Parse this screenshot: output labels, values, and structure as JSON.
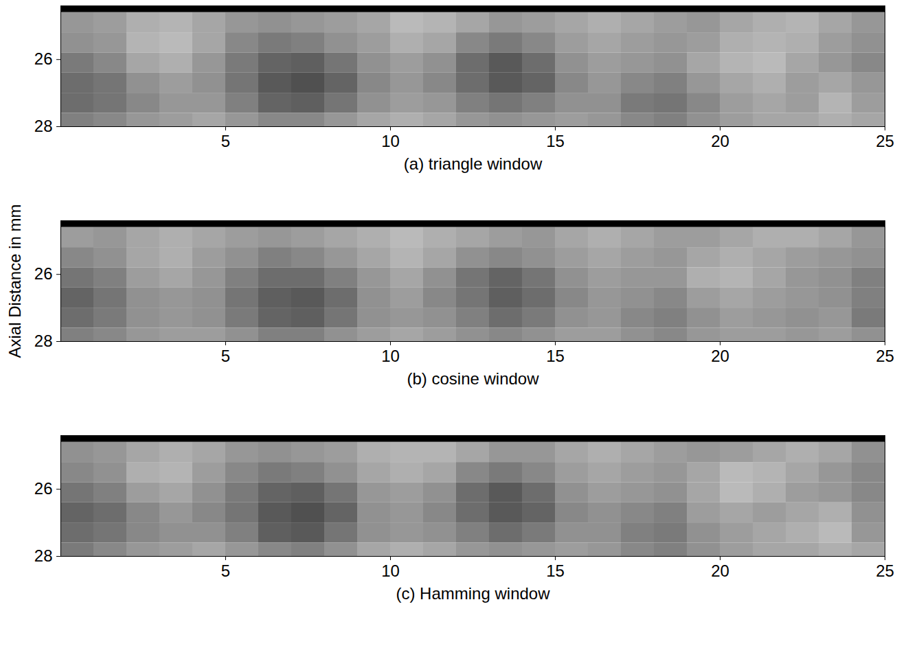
{
  "chart_data": [
    {
      "type": "heatmap",
      "xlabel": "(a) triangle window",
      "color": "gray",
      "xlim": [
        0,
        25
      ],
      "ylim": [
        24.4,
        28
      ],
      "xticks": [
        5,
        10,
        15,
        20,
        25
      ],
      "yticks": [
        26,
        28
      ],
      "clim": [
        0,
        100
      ],
      "x_edges": [
        0,
        1,
        2,
        3,
        4,
        5,
        6,
        7,
        8,
        9,
        10,
        11,
        12,
        13,
        14,
        15,
        16,
        17,
        18,
        19,
        20,
        21,
        22,
        23,
        24,
        25
      ],
      "y_edges": [
        24.4,
        24.6,
        25.2,
        25.8,
        26.4,
        27.0,
        27.6,
        28.0
      ],
      "cells": [
        [
          0,
          0,
          0,
          0,
          0,
          0,
          0,
          0,
          0,
          0,
          0,
          0,
          0,
          0,
          0,
          0,
          0,
          0,
          0,
          0,
          0,
          0,
          0,
          0,
          0
        ],
        [
          50,
          52,
          58,
          60,
          55,
          50,
          48,
          50,
          52,
          55,
          62,
          60,
          55,
          50,
          52,
          55,
          58,
          55,
          52,
          50,
          55,
          58,
          60,
          55,
          50
        ],
        [
          48,
          50,
          60,
          62,
          55,
          45,
          40,
          42,
          48,
          52,
          58,
          55,
          45,
          40,
          45,
          52,
          55,
          52,
          50,
          52,
          58,
          60,
          58,
          52,
          48
        ],
        [
          40,
          45,
          55,
          58,
          50,
          40,
          32,
          30,
          38,
          48,
          52,
          48,
          35,
          28,
          35,
          48,
          52,
          50,
          48,
          55,
          60,
          62,
          55,
          50,
          45
        ],
        [
          35,
          38,
          48,
          52,
          48,
          38,
          28,
          25,
          32,
          45,
          50,
          45,
          35,
          28,
          32,
          45,
          50,
          45,
          42,
          50,
          55,
          58,
          52,
          55,
          50
        ],
        [
          35,
          38,
          45,
          50,
          50,
          42,
          32,
          30,
          38,
          48,
          52,
          50,
          42,
          38,
          42,
          48,
          48,
          40,
          38,
          45,
          52,
          55,
          52,
          60,
          52
        ],
        [
          42,
          45,
          50,
          52,
          55,
          50,
          45,
          45,
          50,
          55,
          58,
          55,
          50,
          48,
          50,
          52,
          50,
          45,
          42,
          48,
          52,
          55,
          55,
          58,
          55
        ]
      ]
    },
    {
      "type": "heatmap",
      "xlabel": "(b) cosine window",
      "ylabel": "Axial Distance in mm",
      "color": "gray",
      "xlim": [
        0,
        25
      ],
      "ylim": [
        24.4,
        28
      ],
      "xticks": [
        5,
        10,
        15,
        20,
        25
      ],
      "yticks": [
        26,
        28
      ],
      "clim": [
        0,
        100
      ],
      "x_edges": [
        0,
        1,
        2,
        3,
        4,
        5,
        6,
        7,
        8,
        9,
        10,
        11,
        12,
        13,
        14,
        15,
        16,
        17,
        18,
        19,
        20,
        21,
        22,
        23,
        24,
        25
      ],
      "y_edges": [
        24.4,
        24.6,
        25.2,
        25.8,
        26.4,
        27.0,
        27.6,
        28.0
      ],
      "cells": [
        [
          0,
          0,
          0,
          0,
          0,
          0,
          0,
          0,
          0,
          0,
          0,
          0,
          0,
          0,
          0,
          0,
          0,
          0,
          0,
          0,
          0,
          0,
          0,
          0,
          0
        ],
        [
          52,
          50,
          55,
          58,
          55,
          52,
          50,
          52,
          55,
          58,
          62,
          58,
          55,
          52,
          50,
          55,
          58,
          55,
          52,
          52,
          55,
          58,
          58,
          55,
          50
        ],
        [
          45,
          48,
          55,
          58,
          52,
          48,
          42,
          45,
          50,
          55,
          60,
          55,
          48,
          45,
          48,
          52,
          55,
          52,
          50,
          55,
          58,
          55,
          52,
          50,
          48
        ],
        [
          38,
          42,
          52,
          55,
          50,
          42,
          35,
          35,
          42,
          50,
          55,
          48,
          38,
          32,
          38,
          48,
          52,
          50,
          50,
          58,
          60,
          55,
          50,
          48,
          42
        ],
        [
          32,
          38,
          48,
          50,
          48,
          38,
          30,
          28,
          35,
          48,
          52,
          45,
          38,
          30,
          35,
          45,
          50,
          48,
          45,
          52,
          55,
          52,
          50,
          48,
          42
        ],
        [
          35,
          40,
          48,
          50,
          48,
          40,
          32,
          30,
          38,
          48,
          50,
          48,
          42,
          35,
          40,
          48,
          50,
          45,
          42,
          48,
          52,
          50,
          48,
          50,
          40
        ],
        [
          42,
          45,
          50,
          52,
          52,
          48,
          42,
          42,
          48,
          52,
          55,
          52,
          48,
          45,
          48,
          52,
          52,
          48,
          45,
          50,
          52,
          52,
          50,
          52,
          48
        ]
      ]
    },
    {
      "type": "heatmap",
      "xlabel": "(c) Hamming window",
      "color": "gray",
      "xlim": [
        0,
        25
      ],
      "ylim": [
        24.4,
        28
      ],
      "xticks": [
        5,
        10,
        15,
        20,
        25
      ],
      "yticks": [
        26,
        28
      ],
      "clim": [
        0,
        100
      ],
      "x_edges": [
        0,
        1,
        2,
        3,
        4,
        5,
        6,
        7,
        8,
        9,
        10,
        11,
        12,
        13,
        14,
        15,
        16,
        17,
        18,
        19,
        20,
        21,
        22,
        23,
        24,
        25
      ],
      "y_edges": [
        24.4,
        24.6,
        25.2,
        25.8,
        26.4,
        27.0,
        27.6,
        28.0
      ],
      "cells": [
        [
          0,
          0,
          0,
          0,
          0,
          0,
          0,
          0,
          0,
          0,
          0,
          0,
          0,
          0,
          0,
          0,
          0,
          0,
          0,
          0,
          0,
          0,
          0,
          0,
          0
        ],
        [
          48,
          50,
          55,
          58,
          55,
          50,
          48,
          50,
          52,
          58,
          60,
          60,
          55,
          50,
          50,
          55,
          58,
          55,
          52,
          50,
          52,
          55,
          58,
          55,
          48
        ],
        [
          45,
          48,
          58,
          60,
          52,
          45,
          40,
          42,
          48,
          55,
          58,
          55,
          45,
          40,
          45,
          52,
          55,
          52,
          50,
          55,
          62,
          60,
          55,
          50,
          45
        ],
        [
          38,
          42,
          52,
          55,
          48,
          40,
          32,
          30,
          38,
          50,
          52,
          48,
          35,
          28,
          35,
          48,
          52,
          50,
          48,
          55,
          62,
          58,
          52,
          50,
          45
        ],
        [
          32,
          35,
          45,
          50,
          45,
          38,
          28,
          25,
          32,
          48,
          50,
          45,
          35,
          28,
          32,
          45,
          48,
          45,
          42,
          52,
          55,
          52,
          55,
          58,
          48
        ],
        [
          35,
          38,
          45,
          48,
          48,
          42,
          30,
          28,
          38,
          48,
          50,
          48,
          42,
          35,
          40,
          48,
          48,
          42,
          40,
          48,
          52,
          55,
          58,
          62,
          50
        ],
        [
          40,
          45,
          50,
          52,
          55,
          50,
          45,
          42,
          48,
          55,
          58,
          55,
          50,
          48,
          50,
          52,
          50,
          45,
          42,
          48,
          52,
          55,
          55,
          58,
          55
        ]
      ]
    }
  ]
}
